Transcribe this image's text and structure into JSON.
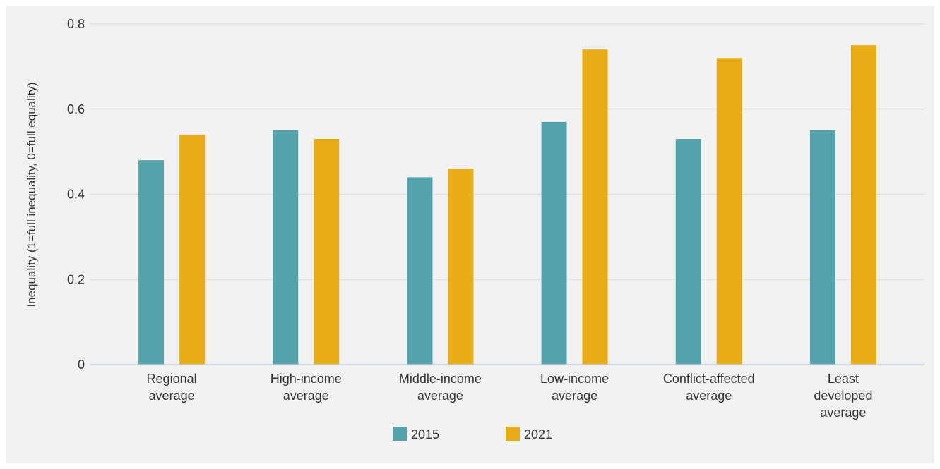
{
  "chart_data": {
    "type": "bar",
    "ylabel": "Inequality (1=full inequality, 0=full equality)",
    "ylim": [
      0,
      0.8
    ],
    "yticks": [
      "0",
      "0.2",
      "0.4",
      "0.6",
      "0.8"
    ],
    "grid": true,
    "legend_position": "bottom",
    "categories": [
      [
        "Regional",
        "average"
      ],
      [
        "High-income",
        "average"
      ],
      [
        "Middle-income",
        "average"
      ],
      [
        "Low-income",
        "average"
      ],
      [
        "Conflict-affected",
        "average"
      ],
      [
        "Least",
        "developed",
        "average"
      ]
    ],
    "series": [
      {
        "name": "2015",
        "color": "#55a3aa",
        "values": [
          0.48,
          0.55,
          0.44,
          0.57,
          0.53,
          0.55
        ]
      },
      {
        "name": "2021",
        "color": "#e8ad14",
        "values": [
          0.54,
          0.53,
          0.46,
          0.74,
          0.72,
          0.75
        ]
      }
    ]
  }
}
